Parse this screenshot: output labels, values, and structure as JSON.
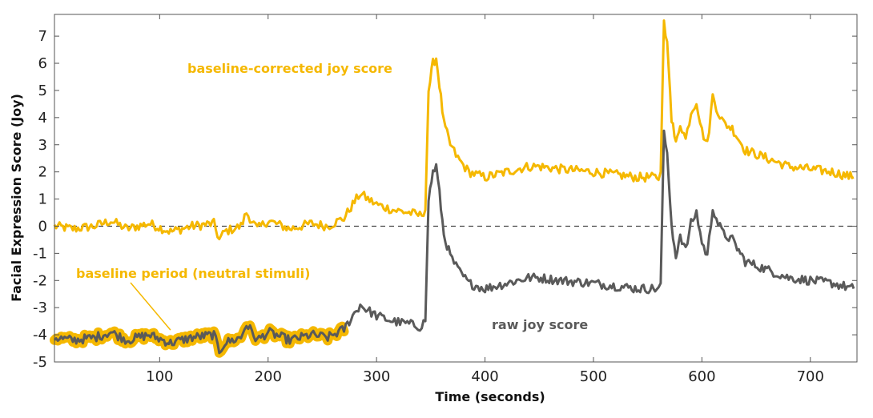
{
  "chart_data": {
    "type": "line",
    "title": "",
    "xlabel": "Time (seconds)",
    "ylabel": "Facial Expression Score (Joy)",
    "xlim": [
      3,
      743
    ],
    "ylim": [
      -5,
      7.8
    ],
    "x_ticks": [
      100,
      200,
      300,
      400,
      500,
      600,
      700
    ],
    "y_ticks": [
      -5,
      -4,
      -3,
      -2,
      -1,
      0,
      1,
      2,
      3,
      4,
      5,
      6,
      7
    ],
    "grid": false,
    "colors": {
      "corrected": "#f5b800",
      "raw": "#5a5a5a",
      "zero_line": "#444444"
    },
    "reference_line": {
      "y": 0,
      "style": "dashed"
    },
    "highlight": {
      "series": "raw joy score",
      "x_range": [
        3,
        270
      ],
      "label": "baseline period (neutral stimuli)"
    },
    "series": [
      {
        "name": "baseline-corrected joy score",
        "x": [
          3,
          20,
          40,
          55,
          70,
          90,
          110,
          130,
          150,
          155,
          160,
          175,
          180,
          190,
          200,
          220,
          240,
          255,
          265,
          270,
          278,
          285,
          292,
          300,
          315,
          330,
          340,
          345,
          348,
          352,
          355,
          358,
          362,
          368,
          375,
          385,
          400,
          420,
          440,
          450,
          470,
          500,
          520,
          540,
          560,
          562,
          565,
          568,
          572,
          576,
          580,
          585,
          590,
          595,
          600,
          605,
          610,
          615,
          620,
          628,
          640,
          660,
          680,
          700,
          720,
          740
        ],
        "values": [
          0.0,
          -0.1,
          0.0,
          0.2,
          -0.1,
          0.1,
          -0.2,
          0.0,
          0.1,
          -0.5,
          -0.2,
          0.0,
          0.5,
          -0.1,
          0.2,
          -0.1,
          0.1,
          0.0,
          0.2,
          0.3,
          0.8,
          1.2,
          1.0,
          0.8,
          0.6,
          0.5,
          0.4,
          0.6,
          5.0,
          6.0,
          6.2,
          5.2,
          3.8,
          3.0,
          2.5,
          2.0,
          1.8,
          2.0,
          2.2,
          2.2,
          2.1,
          2.0,
          1.9,
          1.8,
          1.8,
          2.0,
          7.5,
          6.8,
          4.0,
          3.0,
          3.8,
          3.2,
          4.2,
          4.6,
          3.5,
          3.0,
          4.8,
          4.2,
          3.8,
          3.6,
          2.8,
          2.5,
          2.2,
          2.1,
          2.0,
          1.8
        ]
      },
      {
        "name": "raw joy score",
        "x": [
          3,
          20,
          40,
          55,
          70,
          90,
          110,
          130,
          150,
          155,
          160,
          175,
          180,
          190,
          200,
          220,
          240,
          255,
          265,
          270,
          278,
          285,
          292,
          300,
          315,
          330,
          340,
          345,
          348,
          352,
          355,
          358,
          362,
          368,
          375,
          385,
          400,
          420,
          440,
          450,
          470,
          500,
          520,
          540,
          560,
          562,
          565,
          568,
          572,
          576,
          580,
          585,
          590,
          595,
          600,
          605,
          610,
          615,
          620,
          628,
          640,
          660,
          680,
          700,
          720,
          740
        ],
        "values": [
          -4.1,
          -4.2,
          -4.1,
          -3.9,
          -4.2,
          -4.0,
          -4.3,
          -4.1,
          -4.0,
          -4.6,
          -4.3,
          -4.1,
          -3.6,
          -4.2,
          -3.9,
          -4.2,
          -4.0,
          -4.1,
          -3.9,
          -3.8,
          -3.3,
          -2.9,
          -3.1,
          -3.3,
          -3.5,
          -3.6,
          -3.7,
          -3.5,
          1.0,
          2.0,
          2.2,
          1.2,
          -0.3,
          -1.1,
          -1.6,
          -2.1,
          -2.3,
          -2.1,
          -1.9,
          -1.9,
          -2.0,
          -2.1,
          -2.2,
          -2.3,
          -2.3,
          -2.1,
          3.4,
          2.7,
          -0.1,
          -1.1,
          -0.3,
          -0.9,
          0.1,
          0.5,
          -0.6,
          -1.1,
          0.7,
          0.1,
          -0.3,
          -0.5,
          -1.3,
          -1.6,
          -1.9,
          -2.0,
          -2.1,
          -2.3
        ]
      }
    ],
    "annotations": [
      {
        "text": "baseline-corrected joy score",
        "color": "corrected"
      },
      {
        "text": "baseline period (neutral stimuli)",
        "color": "corrected"
      },
      {
        "text": "raw joy score",
        "color": "raw"
      }
    ]
  }
}
